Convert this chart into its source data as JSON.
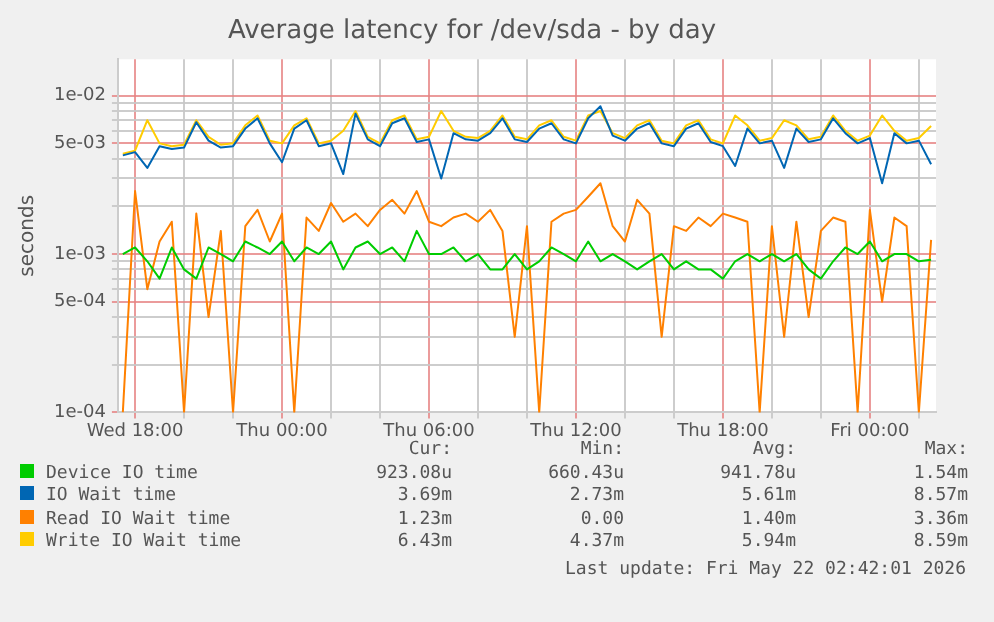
{
  "chart_data": {
    "type": "line",
    "title": "Average latency for /dev/sda - by day",
    "ylabel": "seconds",
    "log": "y",
    "grid": true,
    "legend": "bottom",
    "marker": "none",
    "line_style": "solid",
    "x": [
      "2026-05-20T17:30",
      "2026-05-20T18:00",
      "2026-05-20T18:30",
      "2026-05-20T19:00",
      "2026-05-20T19:30",
      "2026-05-20T20:00",
      "2026-05-20T20:30",
      "2026-05-20T21:00",
      "2026-05-20T21:30",
      "2026-05-20T22:00",
      "2026-05-20T22:30",
      "2026-05-20T23:00",
      "2026-05-20T23:30",
      "2026-05-21T00:00",
      "2026-05-21T00:30",
      "2026-05-21T01:00",
      "2026-05-21T01:30",
      "2026-05-21T02:00",
      "2026-05-21T02:30",
      "2026-05-21T03:00",
      "2026-05-21T03:30",
      "2026-05-21T04:00",
      "2026-05-21T04:30",
      "2026-05-21T05:00",
      "2026-05-21T05:30",
      "2026-05-21T06:00",
      "2026-05-21T06:30",
      "2026-05-21T07:00",
      "2026-05-21T07:30",
      "2026-05-21T08:00",
      "2026-05-21T08:30",
      "2026-05-21T09:00",
      "2026-05-21T09:30",
      "2026-05-21T10:00",
      "2026-05-21T10:30",
      "2026-05-21T11:00",
      "2026-05-21T11:30",
      "2026-05-21T12:00",
      "2026-05-21T12:30",
      "2026-05-21T13:00",
      "2026-05-21T13:30",
      "2026-05-21T14:00",
      "2026-05-21T14:30",
      "2026-05-21T15:00",
      "2026-05-21T15:30",
      "2026-05-21T16:00",
      "2026-05-21T16:30",
      "2026-05-21T17:00",
      "2026-05-21T17:30",
      "2026-05-21T18:00",
      "2026-05-21T18:30",
      "2026-05-21T19:00",
      "2026-05-21T19:30",
      "2026-05-21T20:00",
      "2026-05-21T20:30",
      "2026-05-21T21:00",
      "2026-05-21T21:30",
      "2026-05-21T22:00",
      "2026-05-21T22:30",
      "2026-05-21T23:00",
      "2026-05-21T23:30",
      "2026-05-22T00:00",
      "2026-05-22T00:30",
      "2026-05-22T01:00",
      "2026-05-22T01:30",
      "2026-05-22T02:00",
      "2026-05-22T02:30"
    ],
    "xlim": [
      "2026-05-20T17:18",
      "2026-05-22T02:42"
    ],
    "xticks": [
      {
        "value": "2026-05-20T18:00",
        "label": "Wed 18:00"
      },
      {
        "value": "2026-05-20T20:00",
        "label": null
      },
      {
        "value": "2026-05-20T22:00",
        "label": null
      },
      {
        "value": "2026-05-21T00:00",
        "label": "Thu 00:00"
      },
      {
        "value": "2026-05-21T02:00",
        "label": null
      },
      {
        "value": "2026-05-21T04:00",
        "label": null
      },
      {
        "value": "2026-05-21T06:00",
        "label": "Thu 06:00"
      },
      {
        "value": "2026-05-21T08:00",
        "label": null
      },
      {
        "value": "2026-05-21T10:00",
        "label": null
      },
      {
        "value": "2026-05-21T12:00",
        "label": "Thu 12:00"
      },
      {
        "value": "2026-05-21T14:00",
        "label": null
      },
      {
        "value": "2026-05-21T16:00",
        "label": null
      },
      {
        "value": "2026-05-21T18:00",
        "label": "Thu 18:00"
      },
      {
        "value": "2026-05-21T20:00",
        "label": null
      },
      {
        "value": "2026-05-21T22:00",
        "label": null
      },
      {
        "value": "2026-05-22T00:00",
        "label": "Fri 00:00"
      },
      {
        "value": "2026-05-22T02:00",
        "label": null
      }
    ],
    "ylim": [
      0.0001,
      0.017
    ],
    "yticks": [
      {
        "value": 0.0001,
        "label": "1e-04"
      },
      {
        "value": 0.0002,
        "label": null
      },
      {
        "value": 0.0003,
        "label": null
      },
      {
        "value": 0.0004,
        "label": null
      },
      {
        "value": 0.0005,
        "label": "5e-04"
      },
      {
        "value": 0.0006,
        "label": null
      },
      {
        "value": 0.0007,
        "label": null
      },
      {
        "value": 0.0008,
        "label": null
      },
      {
        "value": 0.0009,
        "label": null
      },
      {
        "value": 0.001,
        "label": "1e-03"
      },
      {
        "value": 0.002,
        "label": null
      },
      {
        "value": 0.003,
        "label": null
      },
      {
        "value": 0.004,
        "label": null
      },
      {
        "value": 0.005,
        "label": "5e-03"
      },
      {
        "value": 0.006,
        "label": null
      },
      {
        "value": 0.007,
        "label": null
      },
      {
        "value": 0.008,
        "label": null
      },
      {
        "value": 0.009,
        "label": null
      },
      {
        "value": 0.01,
        "label": "1e-02"
      }
    ],
    "series": [
      {
        "name": "Device IO time",
        "color": "#00cc00",
        "values": [
          0.001,
          0.0011,
          0.0009,
          0.0007,
          0.0011,
          0.0008,
          0.0007,
          0.0011,
          0.001,
          0.0009,
          0.0012,
          0.0011,
          0.001,
          0.0012,
          0.0009,
          0.0011,
          0.001,
          0.0012,
          0.0008,
          0.0011,
          0.0012,
          0.001,
          0.0011,
          0.0009,
          0.0014,
          0.001,
          0.001,
          0.0011,
          0.0009,
          0.001,
          0.0008,
          0.0008,
          0.001,
          0.0008,
          0.0009,
          0.0011,
          0.001,
          0.0009,
          0.0012,
          0.0009,
          0.001,
          0.0009,
          0.0008,
          0.0009,
          0.001,
          0.0008,
          0.0009,
          0.0008,
          0.0008,
          0.0007,
          0.0009,
          0.001,
          0.0009,
          0.001,
          0.0009,
          0.001,
          0.0008,
          0.0007,
          0.0009,
          0.0011,
          0.001,
          0.0012,
          0.0009,
          0.001,
          0.001,
          0.0009,
          0.00092
        ]
      },
      {
        "name": "IO Wait time",
        "color": "#0066b3",
        "values": [
          0.0042,
          0.0044,
          0.0035,
          0.0048,
          0.0046,
          0.0047,
          0.0068,
          0.0052,
          0.0047,
          0.0048,
          0.0062,
          0.0072,
          0.005,
          0.0038,
          0.0062,
          0.007,
          0.0048,
          0.005,
          0.0032,
          0.0077,
          0.0053,
          0.0048,
          0.0067,
          0.0072,
          0.0051,
          0.0053,
          0.003,
          0.0058,
          0.0053,
          0.0052,
          0.0058,
          0.0072,
          0.0053,
          0.0051,
          0.0062,
          0.0067,
          0.0053,
          0.005,
          0.0072,
          0.00857,
          0.0056,
          0.0052,
          0.0062,
          0.0067,
          0.005,
          0.0048,
          0.0062,
          0.0067,
          0.0051,
          0.0048,
          0.0036,
          0.0062,
          0.005,
          0.0052,
          0.0035,
          0.0062,
          0.0051,
          0.0053,
          0.0072,
          0.0058,
          0.005,
          0.0054,
          0.0028,
          0.0058,
          0.005,
          0.0052,
          0.00369
        ]
      },
      {
        "name": "Read IO Wait time",
        "color": "#ff8000",
        "values": [
          0.0001,
          0.0025,
          0.0006,
          0.0012,
          0.0016,
          0.0001,
          0.0018,
          0.0004,
          0.0014,
          0.0001,
          0.0015,
          0.0019,
          0.0012,
          0.0018,
          0.0001,
          0.0017,
          0.0014,
          0.0021,
          0.0016,
          0.0018,
          0.0015,
          0.0019,
          0.0022,
          0.0018,
          0.0025,
          0.0016,
          0.0015,
          0.0017,
          0.0018,
          0.0016,
          0.0019,
          0.0014,
          0.0003,
          0.0015,
          0.0001,
          0.0016,
          0.0018,
          0.0019,
          0.0023,
          0.0028,
          0.0015,
          0.0012,
          0.0022,
          0.0018,
          0.0003,
          0.0015,
          0.0014,
          0.0017,
          0.0015,
          0.0018,
          0.0017,
          0.0016,
          0.0001,
          0.0015,
          0.0003,
          0.0016,
          0.0004,
          0.0014,
          0.0017,
          0.0016,
          0.0001,
          0.0019,
          0.0005,
          0.0017,
          0.0015,
          0.0001,
          0.00123
        ]
      },
      {
        "name": "Write IO Wait time",
        "color": "#ffcc00",
        "values": [
          0.0043,
          0.0045,
          0.007,
          0.005,
          0.0048,
          0.0049,
          0.007,
          0.0055,
          0.0049,
          0.005,
          0.0065,
          0.0075,
          0.0052,
          0.005,
          0.0065,
          0.0072,
          0.005,
          0.0052,
          0.006,
          0.008,
          0.0055,
          0.005,
          0.007,
          0.0075,
          0.0053,
          0.0055,
          0.008,
          0.006,
          0.0055,
          0.0054,
          0.006,
          0.0075,
          0.0055,
          0.0053,
          0.0065,
          0.007,
          0.0055,
          0.0052,
          0.0075,
          0.008,
          0.0058,
          0.0054,
          0.0065,
          0.007,
          0.0052,
          0.005,
          0.0065,
          0.007,
          0.0053,
          0.005,
          0.0075,
          0.0065,
          0.0052,
          0.0054,
          0.007,
          0.0065,
          0.0053,
          0.0055,
          0.0075,
          0.006,
          0.0052,
          0.0056,
          0.0075,
          0.006,
          0.0052,
          0.0054,
          0.00643
        ]
      }
    ],
    "annotations": [
      "Cur:",
      "Min:",
      "Avg:",
      "Max:",
      "923.08u",
      "660.43u",
      "941.78u",
      "1.54m",
      "3.69m",
      "2.73m",
      "5.61m",
      "8.57m",
      "1.23m",
      "0.00",
      "1.40m",
      "3.36m",
      "6.43m",
      "4.37m",
      "5.94m",
      "8.59m",
      "Last update: Fri May 22 02:42:01 2026"
    ]
  }
}
